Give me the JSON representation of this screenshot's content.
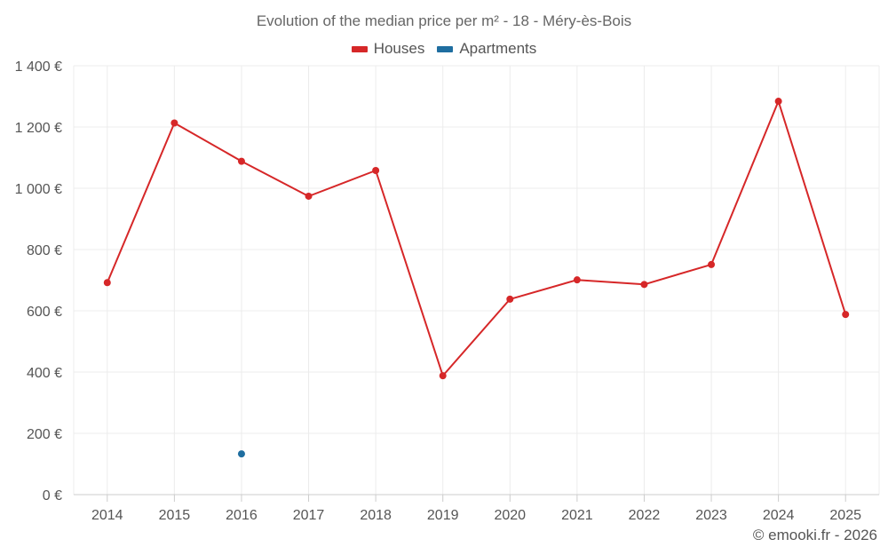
{
  "chart_data": {
    "type": "line",
    "title": "Evolution of the median price per m² - 18 - Méry-ès-Bois",
    "categories": [
      "2014",
      "2015",
      "2016",
      "2017",
      "2018",
      "2019",
      "2020",
      "2021",
      "2022",
      "2023",
      "2024",
      "2025"
    ],
    "series": [
      {
        "name": "Houses",
        "color": "#d62728",
        "values": [
          692,
          1213,
          1088,
          974,
          1058,
          388,
          638,
          701,
          686,
          751,
          1284,
          588
        ]
      },
      {
        "name": "Apartments",
        "color": "#1f6ea0",
        "values": [
          null,
          null,
          133,
          null,
          null,
          null,
          null,
          null,
          null,
          null,
          null,
          null
        ]
      }
    ],
    "y_ticks": [
      0,
      200,
      400,
      600,
      800,
      1000,
      1200,
      1400
    ],
    "y_tick_labels": [
      "0 €",
      "200 €",
      "400 €",
      "600 €",
      "800 €",
      "1 000 €",
      "1 200 €",
      "1 400 €"
    ],
    "ylim": [
      0,
      1400
    ],
    "xlabel": "",
    "ylabel": "",
    "grid": true,
    "legend_position": "top-center"
  },
  "legend": {
    "houses_label": "Houses",
    "apartments_label": "Apartments"
  },
  "credit": "© emooki.fr - 2026"
}
